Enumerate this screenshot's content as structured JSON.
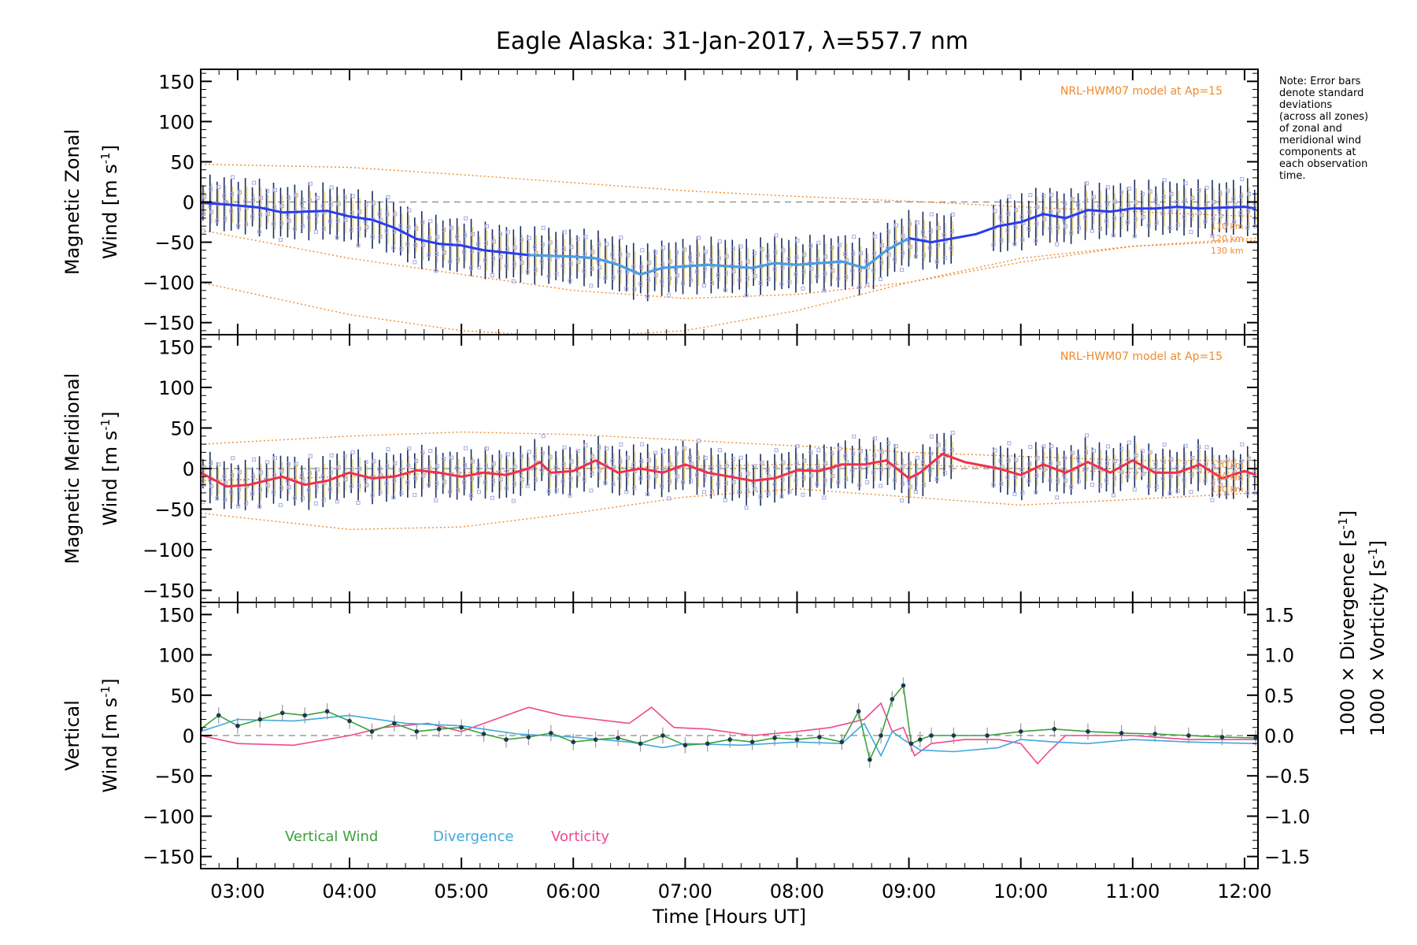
{
  "title": "Eagle Alaska: 31-Jan-2017, λ=557.7 nm",
  "note_lines": [
    "Note: Error bars",
    "denote standard",
    "deviations",
    "(across all zones)",
    "of zonal and",
    "meridional wind",
    "components at",
    "each observation",
    "time."
  ],
  "colors": {
    "zonal_line": "#2a3cf0",
    "zonal_line_light": "#48a0e0",
    "meridional_line": "#f0304a",
    "model": "#f08a2a",
    "scatter": "#a8a8e0",
    "errbar": "#1a2e60",
    "vertical": "#3ca03c",
    "divergence": "#40a8e0",
    "vorticity": "#f04890"
  },
  "chart_data": [
    {
      "type": "line",
      "panel": "zonal",
      "ylabel_line1": "Magnetic Zonal",
      "ylabel_line2": "Wind [m s",
      "ylabel_sup": "-1",
      "ylabel_close": "]",
      "ylim": [
        -165,
        165
      ],
      "yticks": [
        "150",
        "100",
        "50",
        "0",
        "−50",
        "−100",
        "−150"
      ],
      "model_label": "NRL-HWM07 model at Ap=15",
      "km_labels": [
        "110 km",
        "120 km",
        "130 km"
      ],
      "series": [
        {
          "x": [
            2.67,
            2.9,
            3.2,
            3.4,
            3.6,
            3.8,
            4.0,
            4.2,
            4.4,
            4.6,
            4.8,
            5.0,
            5.2,
            5.4,
            5.6,
            5.8,
            6.0,
            6.2,
            6.4,
            6.6,
            6.8,
            7.0,
            7.2,
            7.4,
            7.6,
            7.8,
            8.0,
            8.2,
            8.4,
            8.6,
            8.8,
            9.0,
            9.2,
            9.4,
            9.6,
            9.8,
            10.0,
            10.2,
            10.4,
            10.6,
            10.8,
            11.0,
            11.2,
            11.4,
            11.6,
            11.8,
            12.0,
            12.1
          ],
          "values": [
            -1,
            -3,
            -7,
            -13,
            -12,
            -11,
            -18,
            -22,
            -32,
            -46,
            -52,
            -54,
            -60,
            -63,
            -66,
            -67,
            -68,
            -70,
            -78,
            -90,
            -82,
            -80,
            -78,
            -80,
            -82,
            -76,
            -78,
            -76,
            -74,
            -82,
            -60,
            -45,
            -50,
            -45,
            -40,
            -30,
            -25,
            -15,
            -20,
            -10,
            -12,
            -8,
            -8,
            -6,
            -8,
            -7,
            -6,
            -8
          ]
        }
      ],
      "model_curves": [
        {
          "x": [
            2.67,
            4,
            5,
            6,
            7,
            8,
            9,
            10,
            11,
            12.1
          ],
          "values": [
            47,
            43,
            34,
            24,
            14,
            7,
            1,
            -6,
            -12,
            -18
          ]
        },
        {
          "x": [
            2.67,
            4,
            5,
            6,
            7,
            8,
            9,
            10,
            11,
            12.1
          ],
          "values": [
            -35,
            -70,
            -90,
            -110,
            -120,
            -115,
            -100,
            -75,
            -55,
            -45
          ]
        },
        {
          "x": [
            2.67,
            4,
            5,
            6,
            7,
            8,
            9,
            10,
            11,
            12.1
          ],
          "values": [
            -100,
            -140,
            -160,
            -168,
            -160,
            -135,
            -100,
            -70,
            -55,
            -48
          ]
        }
      ]
    },
    {
      "type": "line",
      "panel": "meridional",
      "ylabel_line1": "Magnetic Meridional",
      "ylabel_line2": "Wind [m s",
      "ylabel_sup": "-1",
      "ylabel_close": "]",
      "ylim": [
        -165,
        165
      ],
      "yticks": [
        "150",
        "100",
        "50",
        "0",
        "−50",
        "−100",
        "−150"
      ],
      "model_label": "NRL-HWM07 model at Ap=15",
      "km_labels": [
        "110 km",
        "120 km",
        "130 km"
      ],
      "series": [
        {
          "x": [
            2.67,
            2.9,
            3.1,
            3.4,
            3.6,
            3.8,
            4.0,
            4.2,
            4.4,
            4.6,
            4.8,
            5.0,
            5.2,
            5.4,
            5.6,
            5.7,
            5.8,
            6.0,
            6.2,
            6.4,
            6.6,
            6.8,
            7.0,
            7.2,
            7.4,
            7.6,
            7.8,
            8.0,
            8.2,
            8.4,
            8.6,
            8.8,
            9.0,
            9.1,
            9.3,
            9.5,
            9.8,
            10.0,
            10.2,
            10.4,
            10.6,
            10.8,
            11.0,
            11.2,
            11.4,
            11.6,
            11.8,
            12.0,
            12.1
          ],
          "values": [
            -5,
            -22,
            -20,
            -10,
            -20,
            -15,
            -5,
            -12,
            -10,
            -2,
            -5,
            -10,
            -5,
            -8,
            0,
            8,
            -5,
            -3,
            10,
            -5,
            0,
            -5,
            5,
            -5,
            -10,
            -15,
            -12,
            -2,
            -3,
            5,
            5,
            10,
            -12,
            -5,
            18,
            8,
            0,
            -8,
            5,
            -5,
            8,
            -5,
            10,
            -5,
            -5,
            5,
            -12,
            -3,
            -8
          ]
        }
      ],
      "model_curves": [
        {
          "x": [
            2.67,
            4,
            5,
            6,
            7,
            8,
            9,
            10,
            11,
            12.1
          ],
          "values": [
            30,
            40,
            45,
            42,
            35,
            28,
            20,
            15,
            10,
            10
          ]
        },
        {
          "x": [
            2.67,
            4,
            5,
            6,
            7,
            8,
            9,
            10,
            11,
            12.1
          ],
          "values": [
            -15,
            -10,
            -5,
            0,
            3,
            5,
            5,
            0,
            -5,
            -5
          ]
        },
        {
          "x": [
            2.67,
            4,
            5,
            6,
            7,
            8,
            9,
            10,
            11,
            12.1
          ],
          "values": [
            -55,
            -75,
            -72,
            -55,
            -35,
            -25,
            -35,
            -45,
            -38,
            -30
          ]
        }
      ]
    },
    {
      "type": "line",
      "panel": "vertical",
      "ylabel_line1": "Vertical",
      "ylabel_line2": "Wind [m s",
      "ylabel_sup": "-1",
      "ylabel_close": "]",
      "ylim": [
        -165,
        165
      ],
      "yticks": [
        "150",
        "100",
        "50",
        "0",
        "−50",
        "−100",
        "−150"
      ],
      "y2lim": [
        -1.65,
        1.65
      ],
      "y2ticks": [
        "1.5",
        "1.0",
        "0.5",
        "0.0",
        "−0.5",
        "−1.0",
        "−1.5"
      ],
      "y2label_div": "1000 × Divergence [s",
      "y2label_vor": "1000 × Vorticity [s",
      "legend": [
        "Vertical Wind",
        "Divergence",
        "Vorticity"
      ],
      "x_tick_labels": [
        "03:00",
        "04:00",
        "05:00",
        "06:00",
        "07:00",
        "08:00",
        "09:00",
        "10:00",
        "11:00",
        "12:00"
      ],
      "xlabel": "Time [Hours UT]",
      "series": [
        {
          "name": "Vertical Wind",
          "x": [
            2.67,
            2.83,
            3.0,
            3.2,
            3.4,
            3.6,
            3.8,
            4.0,
            4.2,
            4.4,
            4.6,
            4.8,
            5.0,
            5.2,
            5.4,
            5.6,
            5.8,
            6.0,
            6.2,
            6.4,
            6.6,
            6.8,
            7.0,
            7.2,
            7.4,
            7.6,
            7.8,
            8.0,
            8.2,
            8.4,
            8.55,
            8.65,
            8.75,
            8.85,
            8.95,
            9.02,
            9.1,
            9.2,
            9.4,
            9.7,
            10.0,
            10.3,
            10.6,
            10.9,
            11.2,
            11.5,
            11.8,
            12.1
          ],
          "values": [
            8,
            25,
            12,
            20,
            28,
            25,
            30,
            18,
            5,
            15,
            5,
            8,
            10,
            2,
            -5,
            -2,
            3,
            -8,
            -5,
            -3,
            -10,
            0,
            -12,
            -10,
            -5,
            -8,
            -3,
            -5,
            -2,
            -8,
            30,
            -30,
            0,
            45,
            62,
            -10,
            -5,
            0,
            0,
            0,
            5,
            8,
            5,
            3,
            2,
            0,
            -2,
            -3
          ]
        },
        {
          "name": "Divergence",
          "x": [
            2.67,
            3.0,
            3.5,
            4.0,
            4.5,
            5.0,
            5.5,
            6.0,
            6.5,
            6.8,
            7.0,
            7.5,
            8.0,
            8.4,
            8.6,
            8.75,
            8.85,
            8.95,
            9.1,
            9.4,
            9.8,
            10.0,
            10.3,
            10.6,
            11.0,
            11.5,
            12.1
          ],
          "values": [
            0.05,
            0.2,
            0.18,
            0.25,
            0.15,
            0.12,
            0.02,
            -0.02,
            -0.08,
            -0.15,
            -0.1,
            -0.12,
            -0.08,
            -0.1,
            0.15,
            -0.25,
            0.05,
            -0.05,
            -0.18,
            -0.2,
            -0.15,
            -0.05,
            -0.08,
            -0.1,
            -0.05,
            -0.08,
            -0.1
          ]
        },
        {
          "name": "Vorticity",
          "x": [
            2.67,
            3.0,
            3.5,
            4.0,
            4.3,
            4.7,
            5.0,
            5.3,
            5.6,
            5.9,
            6.2,
            6.5,
            6.7,
            6.9,
            7.2,
            7.6,
            8.0,
            8.3,
            8.6,
            8.75,
            8.85,
            8.95,
            9.05,
            9.2,
            9.5,
            9.8,
            10.0,
            10.15,
            10.25,
            10.4,
            10.7,
            11.0,
            11.5,
            12.1
          ],
          "values": [
            0.0,
            -0.1,
            -0.12,
            0.0,
            0.1,
            0.15,
            0.05,
            0.2,
            0.35,
            0.25,
            0.2,
            0.15,
            0.35,
            0.1,
            0.08,
            0.0,
            0.05,
            0.1,
            0.2,
            0.4,
            0.05,
            0.1,
            -0.25,
            -0.1,
            -0.05,
            -0.05,
            -0.1,
            -0.35,
            -0.2,
            0.0,
            0.0,
            0.0,
            -0.05,
            -0.05
          ]
        }
      ]
    }
  ]
}
